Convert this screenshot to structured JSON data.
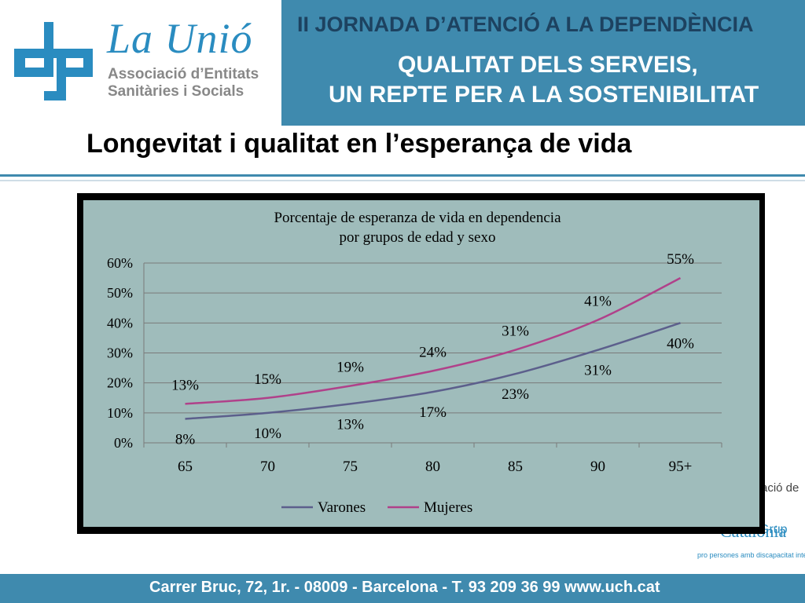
{
  "header": {
    "logo_name": "La Unió",
    "logo_sub_1": "Associació d’Entitats",
    "logo_sub_2": "Sanitàries i Socials",
    "banner_line1": "II JORNADA D’ATENCIÓ A LA DEPENDÈNCIA",
    "banner_line2": "QUALITAT DELS SERVEIS,",
    "banner_line3": "UN REPTE PER A LA SOSTENIBILITAT"
  },
  "slide": {
    "title": "Longevitat i qualitat en l’esperança de vida"
  },
  "side": {
    "text_fragment": "ació de",
    "logo_top": "Grup",
    "logo": "Catalònia",
    "logo_small": "pro persones amb discapacitat intel·lectual"
  },
  "footer": {
    "address": "Carrer Bruc, 72, 1r. - 08009 - Barcelona - T. 93 209 36 99  www.uch.cat"
  },
  "colors": {
    "accent": "#3f8aae",
    "chart_bg": "#9fbcbb",
    "varones": "#5c5f8c",
    "mujeres": "#b0418a"
  },
  "chart_data": {
    "type": "line",
    "title_line1": "Porcentaje de esperanza de vida en dependencia",
    "title_line2": "por grupos de edad y sexo",
    "categories": [
      "65",
      "70",
      "75",
      "80",
      "85",
      "90",
      "95+"
    ],
    "yticks": [
      "0%",
      "10%",
      "20%",
      "30%",
      "40%",
      "50%",
      "60%"
    ],
    "ylim": [
      0,
      60
    ],
    "grid": true,
    "legend_position": "bottom",
    "series": [
      {
        "name": "Varones",
        "values": [
          8,
          10,
          13,
          17,
          23,
          31,
          40
        ],
        "labels": [
          "8%",
          "10%",
          "13%",
          "17%",
          "23%",
          "31%",
          "40%"
        ]
      },
      {
        "name": "Mujeres",
        "values": [
          13,
          15,
          19,
          24,
          31,
          41,
          55
        ],
        "labels": [
          "13%",
          "15%",
          "19%",
          "24%",
          "31%",
          "41%",
          "55%"
        ]
      }
    ]
  }
}
